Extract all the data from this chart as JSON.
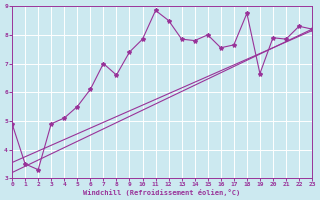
{
  "xlabel": "Windchill (Refroidissement éolien,°C)",
  "xlim": [
    0,
    23
  ],
  "ylim": [
    3,
    9
  ],
  "xticks": [
    0,
    1,
    2,
    3,
    4,
    5,
    6,
    7,
    8,
    9,
    10,
    11,
    12,
    13,
    14,
    15,
    16,
    17,
    18,
    19,
    20,
    21,
    22,
    23
  ],
  "yticks": [
    3,
    4,
    5,
    6,
    7,
    8,
    9
  ],
  "scatter_x": [
    0,
    1,
    2,
    3,
    4,
    5,
    6,
    7,
    8,
    9,
    10,
    11,
    12,
    13,
    14,
    15,
    16,
    17,
    18,
    19,
    20,
    21,
    22,
    23
  ],
  "scatter_y": [
    4.9,
    3.5,
    3.3,
    4.9,
    5.1,
    5.5,
    6.1,
    7.0,
    6.6,
    7.4,
    7.85,
    8.85,
    8.5,
    7.85,
    7.8,
    8.0,
    7.55,
    7.65,
    8.75,
    6.65,
    7.9,
    7.85,
    8.3,
    8.2
  ],
  "line1_x": [
    0,
    23
  ],
  "line1_y": [
    3.2,
    8.2
  ],
  "line2_x": [
    0,
    23
  ],
  "line2_y": [
    3.55,
    8.15
  ],
  "color": "#993399",
  "bg_color": "#cce9f0",
  "grid_color": "#ffffff"
}
